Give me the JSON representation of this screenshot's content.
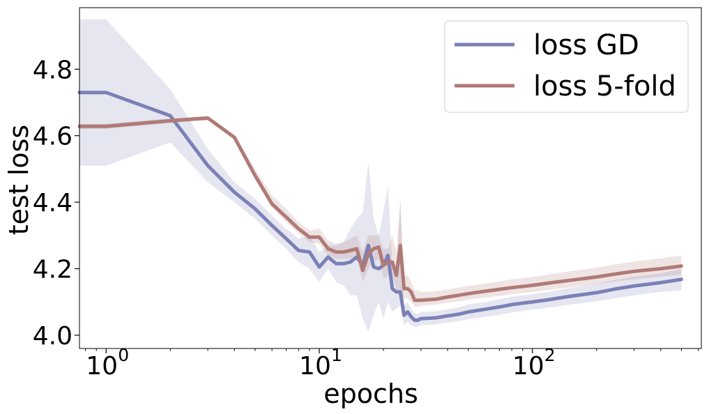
{
  "chart_data": {
    "type": "line",
    "xscale": "log",
    "xlabel": "epochs",
    "ylabel": "test loss",
    "xlim": [
      0.75,
      620
    ],
    "ylim": [
      3.96,
      4.985
    ],
    "xticks": [
      {
        "value": 1,
        "base": "10",
        "exp": "0"
      },
      {
        "value": 10,
        "base": "10",
        "exp": "1"
      },
      {
        "value": 100,
        "base": "10",
        "exp": "2"
      }
    ],
    "yticks": [
      "4.0",
      "4.2",
      "4.4",
      "4.6",
      "4.8"
    ],
    "legend_position": "top-right",
    "series": [
      {
        "name": "loss GD",
        "color": "#7b80b6",
        "x": [
          0.75,
          1,
          2,
          3,
          4,
          5,
          6,
          7,
          8,
          9,
          10,
          11,
          12,
          13,
          14,
          15,
          16,
          17,
          18,
          19,
          20,
          21,
          22,
          23,
          24,
          25,
          26,
          27,
          28,
          29,
          30,
          35,
          40,
          45,
          50,
          60,
          70,
          80,
          100,
          120,
          150,
          200,
          250,
          300,
          400,
          500
        ],
        "y": [
          4.73,
          4.73,
          4.66,
          4.51,
          4.43,
          4.38,
          4.33,
          4.29,
          4.255,
          4.25,
          4.205,
          4.235,
          4.215,
          4.215,
          4.22,
          4.235,
          4.21,
          4.27,
          4.205,
          4.2,
          4.21,
          4.24,
          4.14,
          4.13,
          4.13,
          4.06,
          4.07,
          4.055,
          4.045,
          4.045,
          4.05,
          4.052,
          4.058,
          4.063,
          4.07,
          4.078,
          4.085,
          4.092,
          4.1,
          4.107,
          4.117,
          4.128,
          4.14,
          4.148,
          4.158,
          4.168
        ],
        "lower": [
          4.51,
          4.51,
          4.58,
          4.46,
          4.4,
          4.35,
          4.3,
          4.26,
          4.22,
          4.2,
          4.16,
          4.2,
          4.16,
          4.15,
          4.12,
          4.12,
          4.05,
          4.01,
          4.06,
          4.1,
          4.05,
          4.1,
          4.07,
          4.08,
          4.09,
          4.03,
          4.04,
          4.03,
          4.025,
          4.025,
          4.03,
          4.033,
          4.038,
          4.042,
          4.048,
          4.055,
          4.062,
          4.068,
          4.077,
          4.083,
          4.092,
          4.102,
          4.112,
          4.12,
          4.13,
          4.135
        ],
        "upper": [
          4.95,
          4.95,
          4.74,
          4.56,
          4.46,
          4.41,
          4.36,
          4.32,
          4.29,
          4.3,
          4.25,
          4.27,
          4.27,
          4.28,
          4.32,
          4.35,
          4.37,
          4.52,
          4.35,
          4.3,
          4.37,
          4.45,
          4.21,
          4.18,
          4.4,
          4.09,
          4.1,
          4.08,
          4.065,
          4.065,
          4.07,
          4.072,
          4.078,
          4.084,
          4.092,
          4.1,
          4.108,
          4.116,
          4.123,
          4.131,
          4.142,
          4.154,
          4.168,
          4.176,
          4.186,
          4.2
        ]
      },
      {
        "name": "loss 5-fold",
        "color": "#b07a76",
        "x": [
          0.75,
          1,
          2,
          3,
          4,
          5,
          6,
          7,
          8,
          9,
          10,
          11,
          12,
          13,
          14,
          15,
          16,
          17,
          18,
          19,
          20,
          21,
          22,
          23,
          24,
          25,
          26,
          27,
          28,
          29,
          30,
          35,
          40,
          45,
          50,
          60,
          70,
          80,
          100,
          120,
          150,
          200,
          250,
          300,
          400,
          500
        ],
        "y": [
          4.628,
          4.628,
          4.645,
          4.653,
          4.595,
          4.48,
          4.395,
          4.355,
          4.32,
          4.295,
          4.295,
          4.26,
          4.25,
          4.25,
          4.255,
          4.26,
          4.195,
          4.245,
          4.26,
          4.265,
          4.21,
          4.22,
          4.22,
          4.18,
          4.27,
          4.14,
          4.14,
          4.13,
          4.105,
          4.105,
          4.105,
          4.108,
          4.115,
          4.12,
          4.125,
          4.132,
          4.138,
          4.143,
          4.15,
          4.157,
          4.165,
          4.175,
          4.185,
          4.192,
          4.2,
          4.208
        ],
        "lower": [
          4.62,
          4.62,
          4.638,
          4.646,
          4.588,
          4.47,
          4.385,
          4.34,
          4.305,
          4.28,
          4.275,
          4.24,
          4.23,
          4.23,
          4.23,
          4.23,
          4.16,
          4.2,
          4.22,
          4.23,
          4.17,
          4.18,
          4.18,
          4.14,
          4.12,
          4.11,
          4.11,
          4.1,
          4.085,
          4.085,
          4.088,
          4.092,
          4.098,
          4.102,
          4.107,
          4.113,
          4.118,
          4.123,
          4.13,
          4.136,
          4.144,
          4.153,
          4.162,
          4.168,
          4.176,
          4.183
        ],
        "upper": [
          4.636,
          4.636,
          4.652,
          4.66,
          4.602,
          4.5,
          4.42,
          4.38,
          4.34,
          4.315,
          4.32,
          4.285,
          4.275,
          4.28,
          4.29,
          4.3,
          4.25,
          4.3,
          4.3,
          4.3,
          4.26,
          4.26,
          4.3,
          4.25,
          4.41,
          4.18,
          4.18,
          4.16,
          4.135,
          4.135,
          4.13,
          4.132,
          4.138,
          4.143,
          4.148,
          4.155,
          4.162,
          4.168,
          4.175,
          4.183,
          4.192,
          4.203,
          4.214,
          4.222,
          4.231,
          4.24
        ]
      }
    ]
  }
}
